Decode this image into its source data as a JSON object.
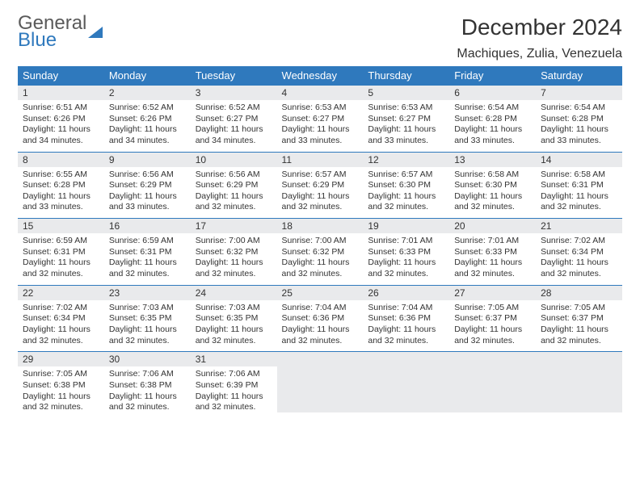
{
  "logo": {
    "line1": "General",
    "line2": "Blue"
  },
  "header": {
    "month_year": "December 2024",
    "location": "Machiques, Zulia, Venezuela"
  },
  "style": {
    "header_bg": "#2f79bd",
    "header_text": "#ffffff",
    "daynum_bg": "#e9eaec",
    "border_color": "#2f79bd",
    "body_font_size": 10.5,
    "header_font_size": 13,
    "month_font_size": 28,
    "location_font_size": 16
  },
  "weekdays": [
    "Sunday",
    "Monday",
    "Tuesday",
    "Wednesday",
    "Thursday",
    "Friday",
    "Saturday"
  ],
  "weeks": [
    [
      {
        "n": "1",
        "r": "Sunrise: 6:51 AM",
        "s": "Sunset: 6:26 PM",
        "d1": "Daylight: 11 hours",
        "d2": "and 34 minutes."
      },
      {
        "n": "2",
        "r": "Sunrise: 6:52 AM",
        "s": "Sunset: 6:26 PM",
        "d1": "Daylight: 11 hours",
        "d2": "and 34 minutes."
      },
      {
        "n": "3",
        "r": "Sunrise: 6:52 AM",
        "s": "Sunset: 6:27 PM",
        "d1": "Daylight: 11 hours",
        "d2": "and 34 minutes."
      },
      {
        "n": "4",
        "r": "Sunrise: 6:53 AM",
        "s": "Sunset: 6:27 PM",
        "d1": "Daylight: 11 hours",
        "d2": "and 33 minutes."
      },
      {
        "n": "5",
        "r": "Sunrise: 6:53 AM",
        "s": "Sunset: 6:27 PM",
        "d1": "Daylight: 11 hours",
        "d2": "and 33 minutes."
      },
      {
        "n": "6",
        "r": "Sunrise: 6:54 AM",
        "s": "Sunset: 6:28 PM",
        "d1": "Daylight: 11 hours",
        "d2": "and 33 minutes."
      },
      {
        "n": "7",
        "r": "Sunrise: 6:54 AM",
        "s": "Sunset: 6:28 PM",
        "d1": "Daylight: 11 hours",
        "d2": "and 33 minutes."
      }
    ],
    [
      {
        "n": "8",
        "r": "Sunrise: 6:55 AM",
        "s": "Sunset: 6:28 PM",
        "d1": "Daylight: 11 hours",
        "d2": "and 33 minutes."
      },
      {
        "n": "9",
        "r": "Sunrise: 6:56 AM",
        "s": "Sunset: 6:29 PM",
        "d1": "Daylight: 11 hours",
        "d2": "and 33 minutes."
      },
      {
        "n": "10",
        "r": "Sunrise: 6:56 AM",
        "s": "Sunset: 6:29 PM",
        "d1": "Daylight: 11 hours",
        "d2": "and 32 minutes."
      },
      {
        "n": "11",
        "r": "Sunrise: 6:57 AM",
        "s": "Sunset: 6:29 PM",
        "d1": "Daylight: 11 hours",
        "d2": "and 32 minutes."
      },
      {
        "n": "12",
        "r": "Sunrise: 6:57 AM",
        "s": "Sunset: 6:30 PM",
        "d1": "Daylight: 11 hours",
        "d2": "and 32 minutes."
      },
      {
        "n": "13",
        "r": "Sunrise: 6:58 AM",
        "s": "Sunset: 6:30 PM",
        "d1": "Daylight: 11 hours",
        "d2": "and 32 minutes."
      },
      {
        "n": "14",
        "r": "Sunrise: 6:58 AM",
        "s": "Sunset: 6:31 PM",
        "d1": "Daylight: 11 hours",
        "d2": "and 32 minutes."
      }
    ],
    [
      {
        "n": "15",
        "r": "Sunrise: 6:59 AM",
        "s": "Sunset: 6:31 PM",
        "d1": "Daylight: 11 hours",
        "d2": "and 32 minutes."
      },
      {
        "n": "16",
        "r": "Sunrise: 6:59 AM",
        "s": "Sunset: 6:31 PM",
        "d1": "Daylight: 11 hours",
        "d2": "and 32 minutes."
      },
      {
        "n": "17",
        "r": "Sunrise: 7:00 AM",
        "s": "Sunset: 6:32 PM",
        "d1": "Daylight: 11 hours",
        "d2": "and 32 minutes."
      },
      {
        "n": "18",
        "r": "Sunrise: 7:00 AM",
        "s": "Sunset: 6:32 PM",
        "d1": "Daylight: 11 hours",
        "d2": "and 32 minutes."
      },
      {
        "n": "19",
        "r": "Sunrise: 7:01 AM",
        "s": "Sunset: 6:33 PM",
        "d1": "Daylight: 11 hours",
        "d2": "and 32 minutes."
      },
      {
        "n": "20",
        "r": "Sunrise: 7:01 AM",
        "s": "Sunset: 6:33 PM",
        "d1": "Daylight: 11 hours",
        "d2": "and 32 minutes."
      },
      {
        "n": "21",
        "r": "Sunrise: 7:02 AM",
        "s": "Sunset: 6:34 PM",
        "d1": "Daylight: 11 hours",
        "d2": "and 32 minutes."
      }
    ],
    [
      {
        "n": "22",
        "r": "Sunrise: 7:02 AM",
        "s": "Sunset: 6:34 PM",
        "d1": "Daylight: 11 hours",
        "d2": "and 32 minutes."
      },
      {
        "n": "23",
        "r": "Sunrise: 7:03 AM",
        "s": "Sunset: 6:35 PM",
        "d1": "Daylight: 11 hours",
        "d2": "and 32 minutes."
      },
      {
        "n": "24",
        "r": "Sunrise: 7:03 AM",
        "s": "Sunset: 6:35 PM",
        "d1": "Daylight: 11 hours",
        "d2": "and 32 minutes."
      },
      {
        "n": "25",
        "r": "Sunrise: 7:04 AM",
        "s": "Sunset: 6:36 PM",
        "d1": "Daylight: 11 hours",
        "d2": "and 32 minutes."
      },
      {
        "n": "26",
        "r": "Sunrise: 7:04 AM",
        "s": "Sunset: 6:36 PM",
        "d1": "Daylight: 11 hours",
        "d2": "and 32 minutes."
      },
      {
        "n": "27",
        "r": "Sunrise: 7:05 AM",
        "s": "Sunset: 6:37 PM",
        "d1": "Daylight: 11 hours",
        "d2": "and 32 minutes."
      },
      {
        "n": "28",
        "r": "Sunrise: 7:05 AM",
        "s": "Sunset: 6:37 PM",
        "d1": "Daylight: 11 hours",
        "d2": "and 32 minutes."
      }
    ],
    [
      {
        "n": "29",
        "r": "Sunrise: 7:05 AM",
        "s": "Sunset: 6:38 PM",
        "d1": "Daylight: 11 hours",
        "d2": "and 32 minutes."
      },
      {
        "n": "30",
        "r": "Sunrise: 7:06 AM",
        "s": "Sunset: 6:38 PM",
        "d1": "Daylight: 11 hours",
        "d2": "and 32 minutes."
      },
      {
        "n": "31",
        "r": "Sunrise: 7:06 AM",
        "s": "Sunset: 6:39 PM",
        "d1": "Daylight: 11 hours",
        "d2": "and 32 minutes."
      },
      {
        "empty": true
      },
      {
        "empty": true
      },
      {
        "empty": true
      },
      {
        "empty": true
      }
    ]
  ]
}
